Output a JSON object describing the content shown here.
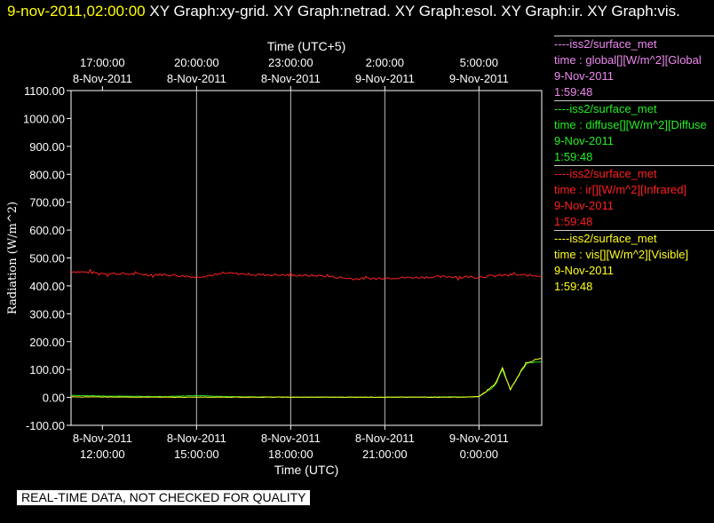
{
  "header": {
    "timestamp": "9-nov-2011,02:00:00",
    "titles": " XY Graph:xy-grid.  XY Graph:netrad.  XY Graph:esol.  XY Graph:ir.  XY Graph:vis."
  },
  "footer": {
    "note": "REAL-TIME DATA, NOT CHECKED FOR QUALITY"
  },
  "colors": {
    "background": "#000000",
    "grid": "#ffffff",
    "ir": "#ff2020",
    "diffuse": "#22dd22",
    "vis": "#ffff20",
    "global": "#ee88ee"
  },
  "legend": [
    {
      "source": "----iss2/surface_met",
      "var": "time : global[][W/m^2][Global",
      "date": "9-Nov-2011",
      "time": "1:59:48",
      "color": "#ee88ee"
    },
    {
      "source": "----iss2/surface_met",
      "var": "time : diffuse[][W/m^2][Diffuse",
      "date": "9-Nov-2011",
      "time": "1:59:48",
      "color": "#22ee22"
    },
    {
      "source": "----iss2/surface_met",
      "var": "time : ir[][W/m^2][Infrared]",
      "date": "9-Nov-2011",
      "time": "1:59:48",
      "color": "#ff2020"
    },
    {
      "source": "----iss2/surface_met",
      "var": "time : vis[][W/m^2][Visible]",
      "date": "9-Nov-2011",
      "time": "1:59:48",
      "color": "#ffff20"
    }
  ],
  "chart_data": {
    "type": "line",
    "title": "",
    "xlabel": "Time (UTC)",
    "x2label": "Time (UTC+5)",
    "ylabel": "Radiation (W/m^2)",
    "ylim": [
      -100,
      1100
    ],
    "xlim": [
      "2011-11-08 11:00",
      "2011-11-09 02:00"
    ],
    "grid": true,
    "legend_position": "right",
    "y_ticks": [
      "-100.00",
      "0.00",
      "100.00",
      "200.00",
      "300.00",
      "400.00",
      "500.00",
      "600.00",
      "700.00",
      "800.00",
      "900.00",
      "1000.00",
      "1100.00"
    ],
    "x_ticks_bottom": [
      {
        "date": "8-Nov-2011",
        "time": "12:00:00"
      },
      {
        "date": "8-Nov-2011",
        "time": "15:00:00"
      },
      {
        "date": "8-Nov-2011",
        "time": "18:00:00"
      },
      {
        "date": "8-Nov-2011",
        "time": "21:00:00"
      },
      {
        "date": "9-Nov-2011",
        "time": "0:00:00"
      }
    ],
    "x_ticks_top": [
      {
        "time": "17:00:00",
        "date": "8-Nov-2011"
      },
      {
        "time": "20:00:00",
        "date": "8-Nov-2011"
      },
      {
        "time": "23:00:00",
        "date": "8-Nov-2011"
      },
      {
        "time": "2:00:00",
        "date": "9-Nov-2011"
      },
      {
        "time": "5:00:00",
        "date": "9-Nov-2011"
      }
    ],
    "series": [
      {
        "key": "ir",
        "x": [
          "2011-11-08 11:00",
          "2011-11-08 12:00",
          "2011-11-08 13:00",
          "2011-11-08 14:00",
          "2011-11-08 15:00",
          "2011-11-08 16:00",
          "2011-11-08 17:00",
          "2011-11-08 18:00",
          "2011-11-08 19:00",
          "2011-11-08 20:00",
          "2011-11-08 21:00",
          "2011-11-08 22:00",
          "2011-11-08 23:00",
          "2011-11-09 00:00",
          "2011-11-09 01:00",
          "2011-11-09 02:00"
        ],
        "values": [
          452,
          445,
          442,
          440,
          432,
          445,
          440,
          438,
          436,
          425,
          428,
          430,
          433,
          432,
          440,
          436
        ]
      },
      {
        "key": "diffuse",
        "x": [
          "2011-11-08 11:00",
          "2011-11-08 12:00",
          "2011-11-08 13:00",
          "2011-11-08 14:00",
          "2011-11-08 15:00",
          "2011-11-08 16:00",
          "2011-11-08 17:00",
          "2011-11-08 18:00",
          "2011-11-08 21:00",
          "2011-11-08 23:30",
          "2011-11-09 00:00",
          "2011-11-09 00:30",
          "2011-11-09 00:45",
          "2011-11-09 01:00",
          "2011-11-09 01:30",
          "2011-11-09 02:00"
        ],
        "values": [
          8,
          5,
          4,
          3,
          7,
          3,
          2,
          1,
          1,
          2,
          3,
          40,
          100,
          30,
          120,
          130
        ]
      },
      {
        "key": "vis",
        "x": [
          "2011-11-08 11:00",
          "2011-11-08 14:00",
          "2011-11-08 17:00",
          "2011-11-08 20:00",
          "2011-11-08 23:30",
          "2011-11-09 00:00",
          "2011-11-09 00:30",
          "2011-11-09 00:45",
          "2011-11-09 01:00",
          "2011-11-09 01:30",
          "2011-11-09 02:00"
        ],
        "values": [
          2,
          1,
          1,
          1,
          1,
          3,
          45,
          105,
          28,
          125,
          140
        ]
      }
    ]
  }
}
